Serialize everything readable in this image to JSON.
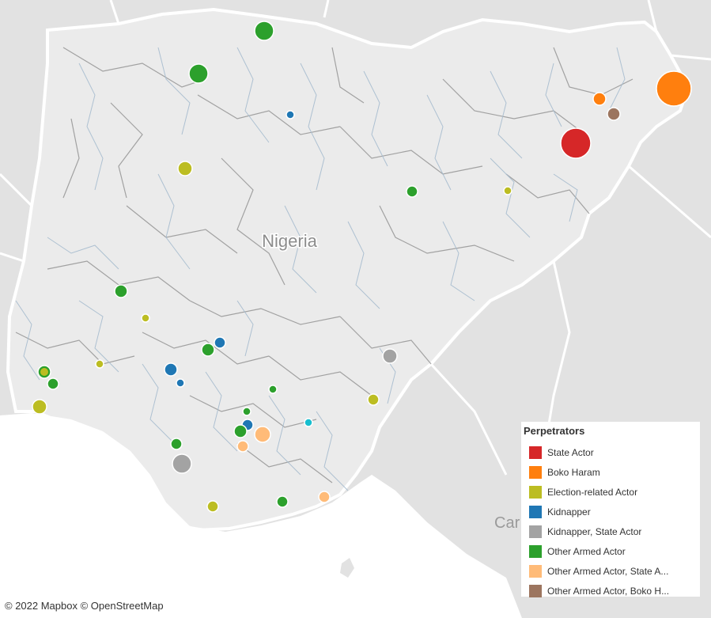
{
  "map": {
    "country_label": "Nigeria",
    "neighbor_label_partial": "Car",
    "colors": {
      "land_foreign": "#e2e2e2",
      "land_nigeria": "#ebebeb",
      "sea": "#ffffff",
      "borders": "#ffffff",
      "rivers": "#a9bfd3",
      "admin": "#8a8a8a"
    }
  },
  "legend": {
    "title": "Perpetrators",
    "items": [
      {
        "label": "State Actor",
        "color": "#d62728"
      },
      {
        "label": "Boko Haram",
        "color": "#ff7f0e"
      },
      {
        "label": "Election-related Actor",
        "color": "#bcbd22"
      },
      {
        "label": "Kidnapper",
        "color": "#1f77b4"
      },
      {
        "label": "Kidnapper, State Actor",
        "color": "#a3a3a3"
      },
      {
        "label": "Other Armed Actor",
        "color": "#2ca02c"
      },
      {
        "label": "Other Armed Actor, State A...",
        "color": "#ffbb78"
      },
      {
        "label": "Other Armed Actor, Boko H...",
        "color": "#9c755f"
      }
    ]
  },
  "attribution": "© 2022 Mapbox  © OpenStreetMap"
}
